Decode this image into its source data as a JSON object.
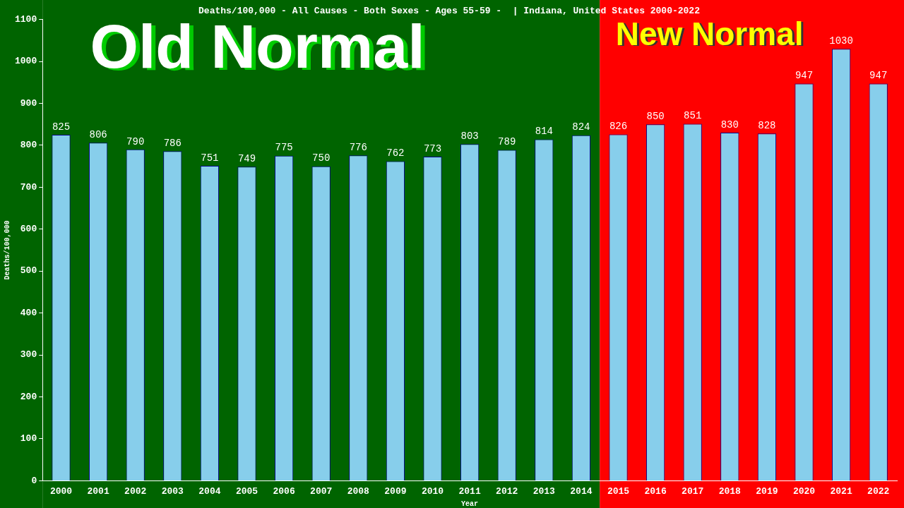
{
  "chart_data": {
    "type": "bar",
    "title": "Deaths/100,000 - All Causes - Both Sexes - Ages 55-59 -  | Indiana, United States 2000-2022",
    "xlabel": "Year",
    "ylabel": "Deaths/100,000",
    "categories": [
      "2000",
      "2001",
      "2002",
      "2003",
      "2004",
      "2005",
      "2006",
      "2007",
      "2008",
      "2009",
      "2010",
      "2011",
      "2012",
      "2013",
      "2014",
      "2015",
      "2016",
      "2017",
      "2018",
      "2019",
      "2020",
      "2021",
      "2022"
    ],
    "values": [
      825,
      806,
      790,
      786,
      751,
      749,
      775,
      750,
      776,
      762,
      773,
      803,
      789,
      814,
      824,
      826,
      850,
      851,
      830,
      828,
      947,
      1030,
      947
    ],
    "color": "#87ceeb",
    "ylim": [
      0,
      1100
    ],
    "yticks": [
      0,
      100,
      200,
      300,
      400,
      500,
      600,
      700,
      800,
      900,
      1000,
      1100
    ],
    "grid": false,
    "legend": false,
    "data_labels": true,
    "bands": [
      {
        "axis": "x",
        "from": "2000",
        "to": "2014",
        "label": "Old Normal",
        "color": "#006400"
      },
      {
        "axis": "x",
        "from": "2015",
        "to": "2022",
        "label": "New Normal",
        "color": "#ff0000"
      }
    ]
  }
}
